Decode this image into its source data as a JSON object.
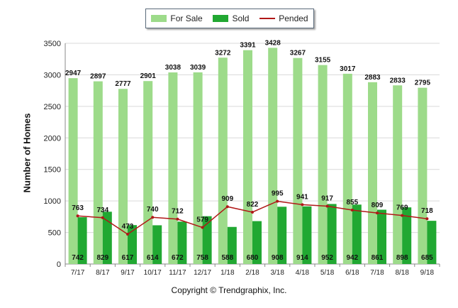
{
  "legend": {
    "items": [
      {
        "label": "For Sale",
        "color": "#9ddb8a",
        "kind": "bar"
      },
      {
        "label": "Sold",
        "color": "#21a832",
        "kind": "bar"
      },
      {
        "label": "Pended",
        "color": "#b01717",
        "kind": "line"
      }
    ]
  },
  "footer": {
    "copyright": "Copyright © Trendgraphix, Inc."
  },
  "chart_data": {
    "type": "bar",
    "title": "",
    "xlabel": "",
    "ylabel": "Number of Homes",
    "ylim": [
      0,
      3500
    ],
    "yticks": [
      0,
      500,
      1000,
      1500,
      2000,
      2500,
      3000,
      3500
    ],
    "grid": true,
    "legend_position": "top-center",
    "categories": [
      "7/17",
      "8/17",
      "9/17",
      "10/17",
      "11/17",
      "12/17",
      "1/18",
      "2/18",
      "3/18",
      "4/18",
      "5/18",
      "6/18",
      "7/18",
      "8/18",
      "9/18"
    ],
    "series": [
      {
        "name": "For Sale",
        "type": "bar",
        "color": "#9ddb8a",
        "values": [
          2947,
          2897,
          2777,
          2901,
          3038,
          3039,
          3272,
          3391,
          3428,
          3267,
          3155,
          3017,
          2883,
          2833,
          2795
        ]
      },
      {
        "name": "Sold",
        "type": "bar",
        "color": "#21a832",
        "values": [
          742,
          829,
          617,
          614,
          672,
          758,
          588,
          680,
          908,
          914,
          952,
          942,
          861,
          898,
          685
        ]
      },
      {
        "name": "Pended",
        "type": "line",
        "color": "#b01717",
        "values": [
          763,
          734,
          473,
          740,
          712,
          579,
          909,
          822,
          995,
          941,
          917,
          855,
          809,
          769,
          718
        ]
      }
    ]
  }
}
